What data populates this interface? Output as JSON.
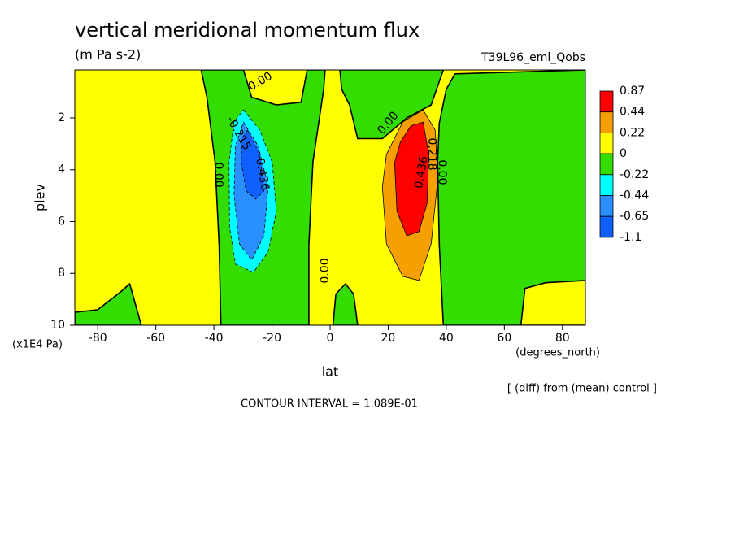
{
  "chart_data": {
    "type": "contour",
    "title": "vertical meridional momentum flux",
    "subtitle": "(m Pa s-2)",
    "run_label": "T39L96_eml_Qobs",
    "x_label": "lat",
    "x_units": "(degrees_north)",
    "y_label": "plev",
    "y_units": "(x1E4 Pa)",
    "note": "[ (diff) from (mean) control ]",
    "contour_interval": "CONTOUR INTERVAL = 1.089E-01",
    "xlim": [
      -87.9,
      87.9
    ],
    "xticks": [
      -80,
      -60,
      -40,
      -20,
      0,
      20,
      40,
      60,
      80
    ],
    "ylim": [
      10,
      0.15
    ],
    "yticks": [
      2,
      4,
      6,
      8,
      10
    ],
    "colorbar": {
      "levels": [
        0.87,
        0.44,
        0.22,
        0,
        -0.22,
        -0.44,
        -0.65,
        -1.1
      ],
      "colors": [
        "#ff0000",
        "#f5a000",
        "#ffff00",
        "#33dd00",
        "#00ffff",
        "#2a90ff",
        "#1060ff"
      ]
    },
    "regions": [
      {
        "level": 0,
        "points": [
          [
            -87.9,
            0.15
          ],
          [
            87.9,
            0.15
          ],
          [
            87.9,
            10
          ],
          [
            -87.9,
            10
          ]
        ]
      },
      {
        "level": -0.22,
        "points": [
          [
            -44.4,
            0.15
          ],
          [
            -29.8,
            0.15
          ],
          [
            -27,
            1.2
          ],
          [
            -18.5,
            1.5
          ],
          [
            -10,
            1.4
          ],
          [
            -7.9,
            0.15
          ],
          [
            -1.7,
            0.15
          ],
          [
            -2.2,
            0.9
          ],
          [
            -5.9,
            3.7
          ],
          [
            -7.3,
            6.9
          ],
          [
            -7.3,
            10
          ],
          [
            -37.6,
            10
          ],
          [
            -38.2,
            6.9
          ],
          [
            -39.6,
            3.7
          ],
          [
            -42.4,
            1.2
          ]
        ]
      },
      {
        "level": -0.22,
        "points": [
          [
            3.4,
            0.15
          ],
          [
            39,
            0.15
          ],
          [
            34.8,
            1.5
          ],
          [
            26.4,
            2.0
          ],
          [
            18,
            2.8
          ],
          [
            9.5,
            2.8
          ],
          [
            6.7,
            1.5
          ],
          [
            4,
            0.9
          ]
        ]
      },
      {
        "level": -0.22,
        "points": [
          [
            39,
            10
          ],
          [
            37.6,
            6.9
          ],
          [
            37,
            3.7
          ],
          [
            37.6,
            2.2
          ],
          [
            40,
            0.9
          ],
          [
            43,
            0.3
          ],
          [
            87.9,
            0.15
          ],
          [
            87.9,
            10
          ]
        ]
      },
      {
        "level": 0,
        "points": [
          [
            65.7,
            10
          ],
          [
            67.1,
            8.58
          ],
          [
            74.2,
            8.36
          ],
          [
            87.9,
            8.27
          ],
          [
            87.9,
            10
          ]
        ]
      },
      {
        "level": -0.22,
        "points": [
          [
            -87.9,
            9.5
          ],
          [
            -80,
            9.4
          ],
          [
            -72,
            8.7
          ],
          [
            -69,
            8.4
          ],
          [
            -66.5,
            9.4
          ],
          [
            -65,
            10
          ],
          [
            -87.9,
            10
          ]
        ]
      },
      {
        "level": -0.22,
        "points": [
          [
            1,
            10
          ],
          [
            2,
            8.8
          ],
          [
            5.3,
            8.4
          ],
          [
            8.1,
            8.8
          ],
          [
            9.5,
            10
          ]
        ]
      },
      {
        "level": -0.44,
        "points": [
          [
            -29.8,
            1.69
          ],
          [
            -24.2,
            2.47
          ],
          [
            -19.9,
            3.72
          ],
          [
            -18.5,
            5.6
          ],
          [
            -21.3,
            7.17
          ],
          [
            -26.4,
            7.96
          ],
          [
            -32.6,
            7.64
          ],
          [
            -34.6,
            6.23
          ],
          [
            -34.8,
            3.72
          ],
          [
            -33.1,
            2.16
          ]
        ]
      },
      {
        "level": -0.65,
        "points": [
          [
            -29.8,
            2.16
          ],
          [
            -24.7,
            3.1
          ],
          [
            -21.3,
            4.66
          ],
          [
            -22.8,
            6.55
          ],
          [
            -27,
            7.49
          ],
          [
            -31.2,
            6.86
          ],
          [
            -33.1,
            4.98
          ],
          [
            -32.6,
            3.1
          ]
        ]
      },
      {
        "level": -1.1,
        "points": [
          [
            -28.4,
            2.47
          ],
          [
            -24.2,
            3.41
          ],
          [
            -22.8,
            4.82
          ],
          [
            -25.6,
            5.13
          ],
          [
            -28.9,
            4.82
          ],
          [
            -30.6,
            3.72
          ],
          [
            -30.3,
            2.78
          ]
        ]
      },
      {
        "level": 0.22,
        "points": [
          [
            25,
            2.16
          ],
          [
            32,
            1.69
          ],
          [
            36.2,
            2.47
          ],
          [
            37.1,
            4.35
          ],
          [
            34.8,
            6.86
          ],
          [
            30.6,
            8.27
          ],
          [
            25,
            8.11
          ],
          [
            19.4,
            6.86
          ],
          [
            18,
            4.66
          ],
          [
            19.4,
            3.41
          ]
        ]
      },
      {
        "level": 0.44,
        "points": [
          [
            27.8,
            2.31
          ],
          [
            32,
            2.16
          ],
          [
            34,
            3.41
          ],
          [
            33.4,
            5.29
          ],
          [
            30.6,
            6.39
          ],
          [
            26.4,
            6.55
          ],
          [
            23,
            5.6
          ],
          [
            22.2,
            3.72
          ],
          [
            24.2,
            2.94
          ]
        ]
      }
    ],
    "contour_labels": [
      {
        "text": "0.00",
        "at": [
          -24,
          0.6
        ]
      },
      {
        "text": "0.00",
        "at": [
          20,
          2.2
        ]
      },
      {
        "text": "0.00",
        "at": [
          -38.5,
          4.2
        ]
      },
      {
        "text": "0.00",
        "at": [
          -1.7,
          7.9
        ]
      },
      {
        "text": "-0.215",
        "at": [
          -31.5,
          2.6
        ]
      },
      {
        "text": "-0.436",
        "at": [
          -23.5,
          4.1
        ]
      },
      {
        "text": "0.436",
        "at": [
          31.5,
          4.1
        ]
      },
      {
        "text": "0.218",
        "at": [
          35,
          3.4
        ]
      },
      {
        "text": "0.00",
        "at": [
          38.5,
          4.1
        ]
      }
    ]
  }
}
